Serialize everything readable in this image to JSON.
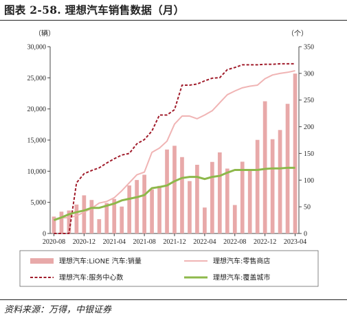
{
  "header": {
    "title": "图表 2-58. 理想汽车销售数据（月）",
    "source": "资料来源：万得，中银证券"
  },
  "chart_data": {
    "type": "bar",
    "title": "图表 2-58. 理想汽车销售数据（月）",
    "left_unit": "（辆）",
    "right_unit": "（个）",
    "x": [
      "2020-08",
      "2020-09",
      "2020-10",
      "2020-11",
      "2020-12",
      "2021-01",
      "2021-02",
      "2021-03",
      "2021-04",
      "2021-05",
      "2021-06",
      "2021-07",
      "2021-08",
      "2021-09",
      "2021-10",
      "2021-11",
      "2021-12",
      "2022-01",
      "2022-02",
      "2022-03",
      "2022-04",
      "2022-05",
      "2022-06",
      "2022-07",
      "2022-08",
      "2022-09",
      "2022-10",
      "2022-11",
      "2022-12",
      "2023-01",
      "2023-02",
      "2023-03",
      "2023-04"
    ],
    "x_tick_labels": [
      "2020-08",
      "2020-12",
      "2021-04",
      "2021-08",
      "2021-12",
      "2022-04",
      "2022-08",
      "2022-12",
      "2023-04"
    ],
    "left_axis": {
      "min": 0,
      "max": 30000,
      "ticks": [
        "0",
        "5,000",
        "10,000",
        "15,000",
        "20,000",
        "25,000",
        "30,000"
      ]
    },
    "right_axis": {
      "min": 0,
      "max": 350,
      "ticks": [
        "0",
        "50",
        "100",
        "150",
        "200",
        "250",
        "300",
        "350"
      ]
    },
    "series": [
      {
        "name": "理想汽车:LiONE 汽车:销量",
        "type": "bar",
        "axis": "left",
        "color": "#e8a9a9",
        "values": [
          2711,
          3504,
          3692,
          4646,
          6126,
          5379,
          2300,
          4900,
          5539,
          4323,
          7713,
          8589,
          9433,
          7094,
          7649,
          13485,
          14087,
          12268,
          8414,
          11034,
          4167,
          11496,
          13024,
          10422,
          4571,
          11531,
          10052,
          15034,
          21233,
          15141,
          16620,
          20823,
          25681
        ]
      },
      {
        "name": "理想汽车:零售商店",
        "type": "line",
        "axis": "right",
        "color": "#f0b4b4",
        "values": [
          27,
          29,
          30,
          33,
          40,
          47,
          57,
          60,
          67,
          80,
          95,
          110,
          115,
          152,
          160,
          173,
          205,
          220,
          220,
          215,
          222,
          230,
          245,
          260,
          267,
          273,
          276,
          278,
          290,
          297,
          300,
          302,
          305
        ]
      },
      {
        "name": "理想汽车:服务中心数",
        "type": "line",
        "axis": "right",
        "color": "#a01b2a",
        "dash": true,
        "values": [
          0,
          0,
          0,
          95,
          112,
          118,
          123,
          132,
          140,
          147,
          150,
          168,
          176,
          192,
          222,
          222,
          232,
          278,
          278,
          280,
          286,
          291,
          292,
          307,
          311,
          316,
          316,
          316,
          317,
          317,
          318,
          318,
          318
        ]
      },
      {
        "name": "理想汽车:覆盖城市",
        "type": "line",
        "axis": "right",
        "color": "#8db84a",
        "values": [
          25,
          30,
          36,
          40,
          43,
          48,
          48,
          52,
          56,
          62,
          65,
          68,
          72,
          85,
          87,
          90,
          98,
          104,
          106,
          106,
          102,
          106,
          108,
          114,
          119,
          119,
          119,
          119,
          121,
          122,
          122,
          123,
          123
        ]
      }
    ],
    "legend_position": "bottom",
    "grid": false
  }
}
